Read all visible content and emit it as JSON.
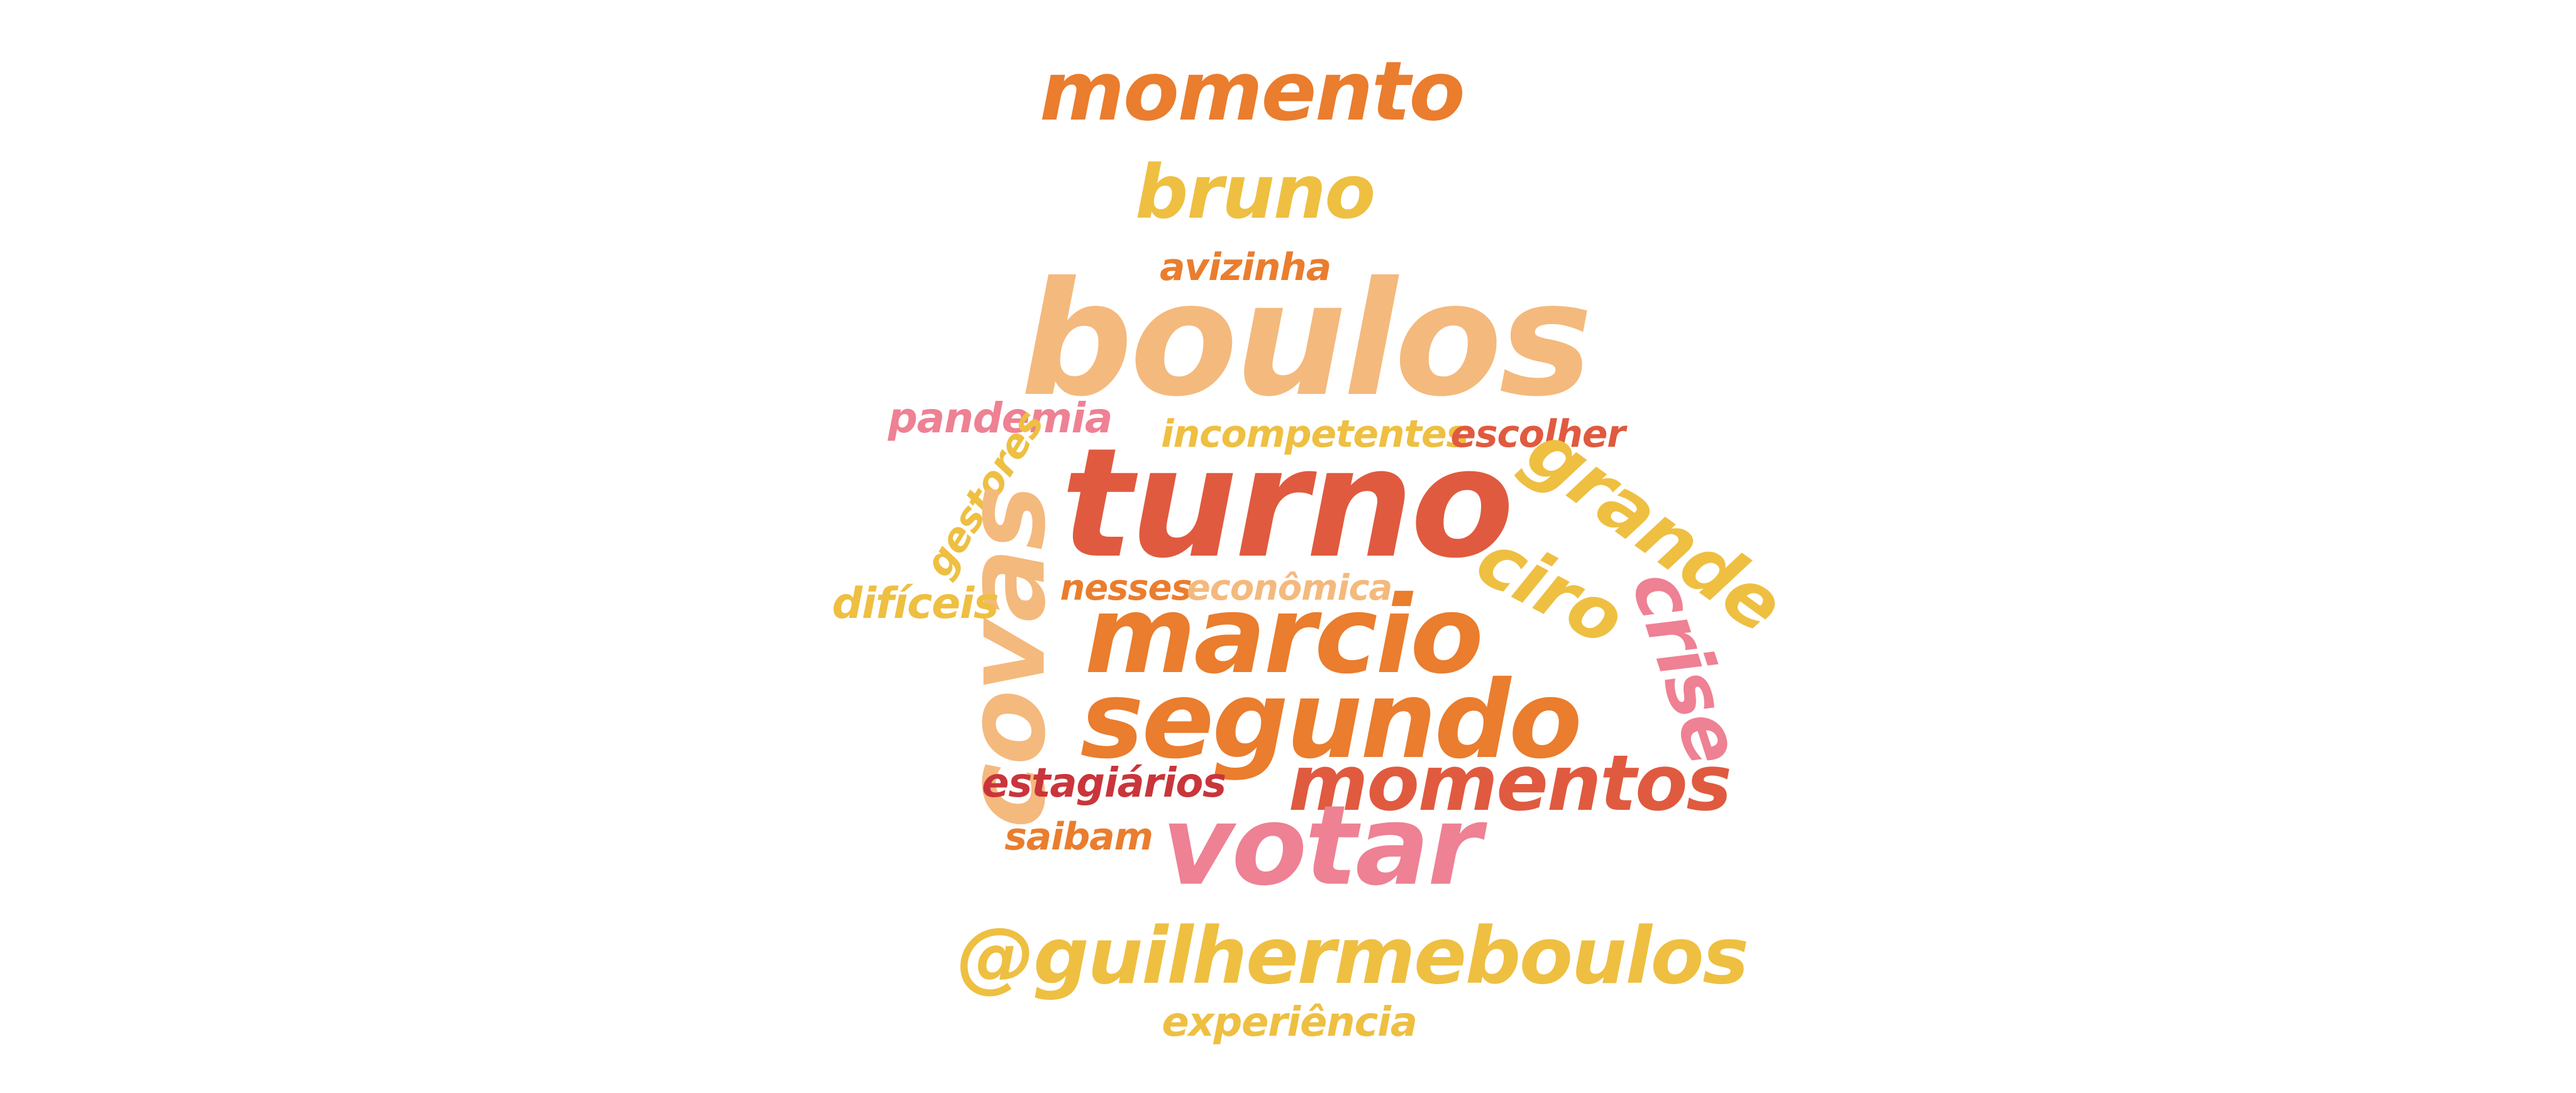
{
  "palette": {
    "red": "#e05a3f",
    "dark_red": "#c9353a",
    "orange": "#ea7d2e",
    "peach": "#f4b97d",
    "yellow": "#eebf41",
    "pink": "#ee8193"
  },
  "words": {
    "momento": "momento",
    "bruno": "bruno",
    "avizinha": "avizinha",
    "boulos": "boulos",
    "pandemia": "pandemia",
    "incompetentes": "incompetentes",
    "escolher": "escolher",
    "gestores": "gestores",
    "turno": "turno",
    "grande": "grande",
    "covas": "covas",
    "dificeis": "difíceis",
    "nesses": "nesses",
    "economica": "econômica",
    "ciro": "ciro",
    "marcio": "marcio",
    "crise": "crise",
    "segundo": "segundo",
    "estagiarios": "estagiários",
    "momentos": "momentos",
    "saibam": "saibam",
    "votar": "votar",
    "guilhermeboulos": "@guilhermeboulos",
    "experiencia": "experiência"
  }
}
